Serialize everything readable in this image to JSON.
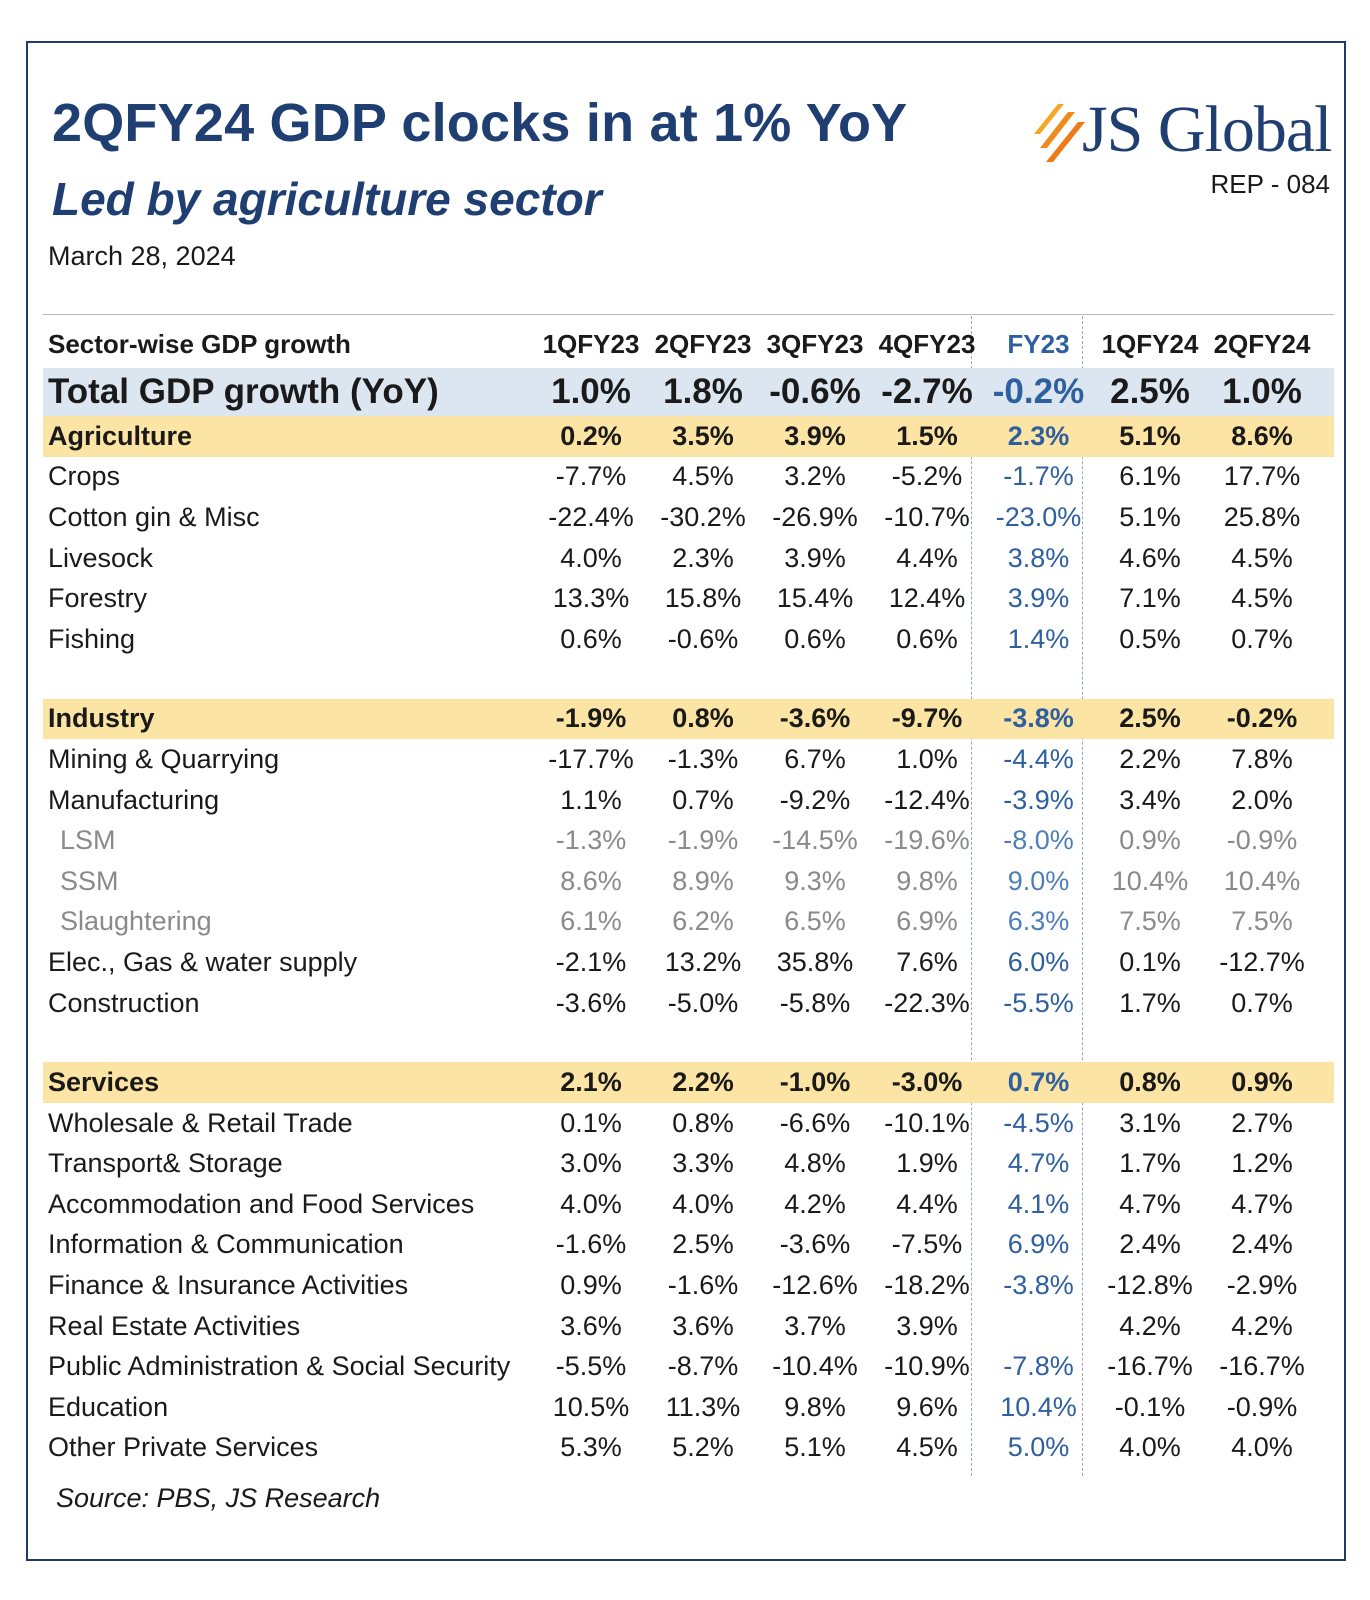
{
  "header": {
    "title": "2QFY24 GDP clocks in at 1% YoY",
    "subtitle": "Led by agriculture sector",
    "date": "March 28, 2024",
    "brand": "JS Global",
    "report_id": "REP - 084"
  },
  "colors": {
    "title": "#1f3f73",
    "fy_column": "#2e5f9e",
    "total_row_bg": "#dce6f1",
    "sector_row_bg": "#fce4a5",
    "logo_orange": "#f08a1c"
  },
  "table": {
    "columns": [
      "Sector-wise GDP growth",
      "1QFY23",
      "2QFY23",
      "3QFY23",
      "4QFY23",
      "FY23",
      "1QFY24",
      "2QFY24"
    ],
    "rows": [
      {
        "label": "Total GDP growth (YoY)",
        "values": [
          "1.0%",
          "1.8%",
          "-0.6%",
          "-2.7%",
          "-0.2%",
          "2.5%",
          "1.0%"
        ]
      },
      {
        "label": "Agriculture",
        "values": [
          "0.2%",
          "3.5%",
          "3.9%",
          "1.5%",
          "2.3%",
          "5.1%",
          "8.6%"
        ]
      },
      {
        "label": "Crops",
        "values": [
          "-7.7%",
          "4.5%",
          "3.2%",
          "-5.2%",
          "-1.7%",
          "6.1%",
          "17.7%"
        ]
      },
      {
        "label": "Cotton gin & Misc",
        "values": [
          "-22.4%",
          "-30.2%",
          "-26.9%",
          "-10.7%",
          "-23.0%",
          "5.1%",
          "25.8%"
        ]
      },
      {
        "label": "Livesock",
        "values": [
          "4.0%",
          "2.3%",
          "3.9%",
          "4.4%",
          "3.8%",
          "4.6%",
          "4.5%"
        ]
      },
      {
        "label": "Forestry",
        "values": [
          "13.3%",
          "15.8%",
          "15.4%",
          "12.4%",
          "3.9%",
          "7.1%",
          "4.5%"
        ]
      },
      {
        "label": "Fishing",
        "values": [
          "0.6%",
          "-0.6%",
          "0.6%",
          "0.6%",
          "1.4%",
          "0.5%",
          "0.7%"
        ]
      },
      {
        "label": "Industry",
        "values": [
          "-1.9%",
          "0.8%",
          "-3.6%",
          "-9.7%",
          "-3.8%",
          "2.5%",
          "-0.2%"
        ]
      },
      {
        "label": "Mining & Quarrying",
        "values": [
          "-17.7%",
          "-1.3%",
          "6.7%",
          "1.0%",
          "-4.4%",
          "2.2%",
          "7.8%"
        ]
      },
      {
        "label": "Manufacturing",
        "values": [
          "1.1%",
          "0.7%",
          "-9.2%",
          "-12.4%",
          "-3.9%",
          "3.4%",
          "2.0%"
        ]
      },
      {
        "label": "LSM",
        "values": [
          "-1.3%",
          "-1.9%",
          "-14.5%",
          "-19.6%",
          "-8.0%",
          "0.9%",
          "-0.9%"
        ]
      },
      {
        "label": "SSM",
        "values": [
          "8.6%",
          "8.9%",
          "9.3%",
          "9.8%",
          "9.0%",
          "10.4%",
          "10.4%"
        ]
      },
      {
        "label": "Slaughtering",
        "values": [
          "6.1%",
          "6.2%",
          "6.5%",
          "6.9%",
          "6.3%",
          "7.5%",
          "7.5%"
        ]
      },
      {
        "label": "Elec.,  Gas & water supply",
        "values": [
          "-2.1%",
          "13.2%",
          "35.8%",
          "7.6%",
          "6.0%",
          "0.1%",
          "-12.7%"
        ]
      },
      {
        "label": "Construction",
        "values": [
          "-3.6%",
          "-5.0%",
          "-5.8%",
          "-22.3%",
          "-5.5%",
          "1.7%",
          "0.7%"
        ]
      },
      {
        "label": "Services",
        "values": [
          "2.1%",
          "2.2%",
          "-1.0%",
          "-3.0%",
          "0.7%",
          "0.8%",
          "0.9%"
        ]
      },
      {
        "label": "Wholesale & Retail Trade",
        "values": [
          "0.1%",
          "0.8%",
          "-6.6%",
          "-10.1%",
          "-4.5%",
          "3.1%",
          "2.7%"
        ]
      },
      {
        "label": "Transport& Storage",
        "values": [
          "3.0%",
          "3.3%",
          "4.8%",
          "1.9%",
          "4.7%",
          "1.7%",
          "1.2%"
        ]
      },
      {
        "label": "Accommodation and Food Services",
        "values": [
          "4.0%",
          "4.0%",
          "4.2%",
          "4.4%",
          "4.1%",
          "4.7%",
          "4.7%"
        ]
      },
      {
        "label": "Information & Communication",
        "values": [
          "-1.6%",
          "2.5%",
          "-3.6%",
          "-7.5%",
          "6.9%",
          "2.4%",
          "2.4%"
        ]
      },
      {
        "label": "Finance & Insurance Activities",
        "values": [
          "0.9%",
          "-1.6%",
          "-12.6%",
          "-18.2%",
          "-3.8%",
          "-12.8%",
          "-2.9%"
        ]
      },
      {
        "label": "Real Estate Activities",
        "values": [
          "3.6%",
          "3.6%",
          "3.7%",
          "3.9%",
          "",
          "4.2%",
          "4.2%"
        ]
      },
      {
        "label": "Public Administration & Social Security",
        "values": [
          "-5.5%",
          "-8.7%",
          "-10.4%",
          "-10.9%",
          "-7.8%",
          "-16.7%",
          "-16.7%"
        ]
      },
      {
        "label": "Education",
        "values": [
          "10.5%",
          "11.3%",
          "9.8%",
          "9.6%",
          "10.4%",
          "-0.1%",
          "-0.9%"
        ]
      },
      {
        "label": "Other Private Services",
        "values": [
          "5.3%",
          "5.2%",
          "5.1%",
          "4.5%",
          "5.0%",
          "4.0%",
          "4.0%"
        ]
      }
    ]
  },
  "footer": {
    "source": "Source: PBS, JS Research"
  }
}
